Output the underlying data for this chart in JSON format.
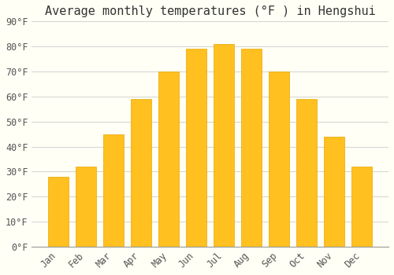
{
  "title": "Average monthly temperatures (°F ) in Hengshui",
  "months": [
    "Jan",
    "Feb",
    "Mar",
    "Apr",
    "May",
    "Jun",
    "Jul",
    "Aug",
    "Sep",
    "Oct",
    "Nov",
    "Dec"
  ],
  "values": [
    28,
    32,
    45,
    59,
    70,
    79,
    81,
    79,
    70,
    59,
    44,
    32
  ],
  "bar_color": "#FFC020",
  "bar_edge_color": "#E8A800",
  "background_color": "#FFFFF5",
  "grid_color": "#CCCCCC",
  "ylim": [
    0,
    90
  ],
  "yticks": [
    0,
    10,
    20,
    30,
    40,
    50,
    60,
    70,
    80,
    90
  ],
  "title_fontsize": 11,
  "tick_fontsize": 8.5,
  "font_family": "monospace"
}
